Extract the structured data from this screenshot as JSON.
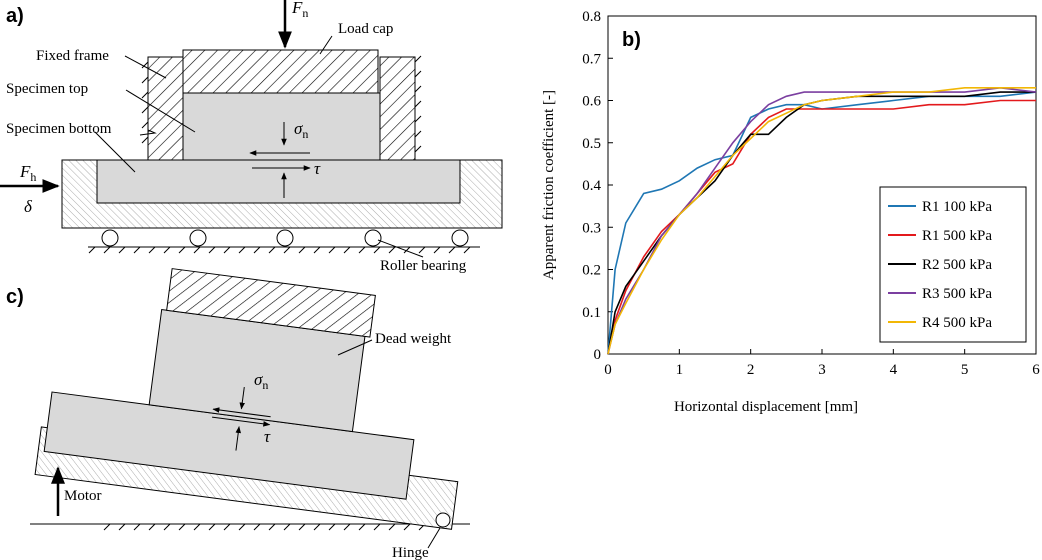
{
  "chart_data": {
    "type": "line",
    "panel_label": "b)",
    "x_label": "Horizontal displacement [mm]",
    "y_label": "Apparent friction coefficient [-]",
    "xlim": [
      0,
      6
    ],
    "ylim": [
      0,
      0.8
    ],
    "xticks": [
      0,
      1,
      2,
      3,
      4,
      5,
      6
    ],
    "yticks": [
      0,
      0.1,
      0.2,
      0.3,
      0.4,
      0.5,
      0.6,
      0.7,
      0.8
    ],
    "legend": "lower right",
    "grid": false,
    "x": [
      0,
      0.1,
      0.25,
      0.5,
      0.75,
      1,
      1.25,
      1.5,
      1.75,
      2,
      2.25,
      2.5,
      2.75,
      3,
      3.5,
      4,
      4.5,
      5,
      5.5,
      6
    ],
    "series": [
      {
        "name": "R1 100 kPa",
        "color": "#1f77b4",
        "values": [
          0,
          0.2,
          0.31,
          0.38,
          0.39,
          0.41,
          0.44,
          0.46,
          0.47,
          0.56,
          0.58,
          0.59,
          0.59,
          0.58,
          0.59,
          0.6,
          0.61,
          0.61,
          0.61,
          0.62
        ]
      },
      {
        "name": "R1 500 kPa",
        "color": "#e3191c",
        "values": [
          0,
          0.08,
          0.15,
          0.23,
          0.29,
          0.33,
          0.38,
          0.43,
          0.45,
          0.52,
          0.56,
          0.58,
          0.58,
          0.58,
          0.58,
          0.58,
          0.59,
          0.59,
          0.6,
          0.6
        ]
      },
      {
        "name": "R2 500 kPa",
        "color": "#000000",
        "values": [
          0,
          0.1,
          0.16,
          0.22,
          0.28,
          0.33,
          0.37,
          0.41,
          0.47,
          0.52,
          0.52,
          0.56,
          0.59,
          0.6,
          0.61,
          0.61,
          0.61,
          0.61,
          0.62,
          0.62
        ]
      },
      {
        "name": "R3 500 kPa",
        "color": "#7b3fa0",
        "values": [
          0,
          0.07,
          0.13,
          0.2,
          0.28,
          0.33,
          0.38,
          0.44,
          0.5,
          0.55,
          0.59,
          0.61,
          0.62,
          0.62,
          0.62,
          0.62,
          0.62,
          0.62,
          0.63,
          0.62
        ]
      },
      {
        "name": "R4 500 kPa",
        "color": "#f2b705",
        "values": [
          0,
          0.07,
          0.12,
          0.2,
          0.27,
          0.33,
          0.37,
          0.42,
          0.47,
          0.51,
          0.55,
          0.57,
          0.59,
          0.6,
          0.61,
          0.62,
          0.62,
          0.63,
          0.63,
          0.63
        ]
      }
    ]
  },
  "diagram_a": {
    "panel_label": "a)",
    "load_cap": "Load cap",
    "fixed_frame": "Fixed frame",
    "specimen_top": "Specimen top",
    "specimen_bottom": "Specimen bottom",
    "roller_bearing": "Roller bearing",
    "normal_force": {
      "symbol": "F",
      "subscript": "n"
    },
    "horizontal_force": {
      "symbol": "F",
      "subscript": "h"
    },
    "displacement": "δ",
    "normal_stress": {
      "symbol": "σ",
      "subscript": "n"
    },
    "shear_stress": "τ"
  },
  "diagram_c": {
    "panel_label": "c)",
    "dead_weight": "Dead weight",
    "motor": "Motor",
    "hinge": "Hinge",
    "normal_stress": {
      "symbol": "σ",
      "subscript": "n"
    },
    "shear_stress": "τ"
  }
}
